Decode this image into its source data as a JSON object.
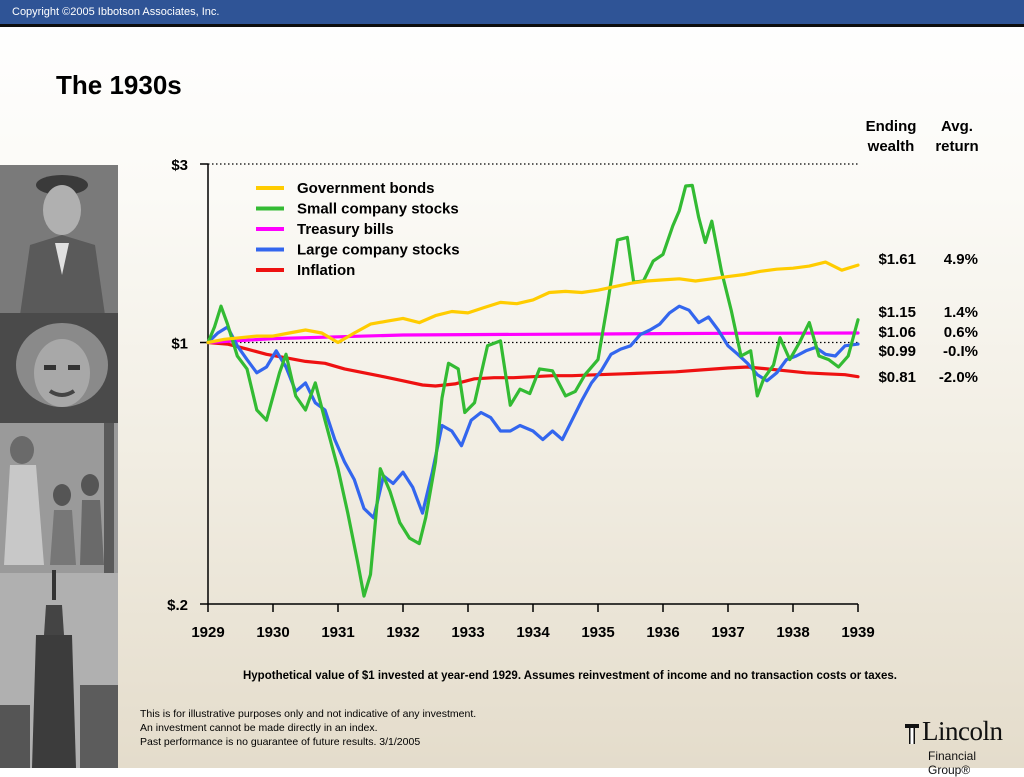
{
  "header": {
    "copyright": "Copyright ©2005 Ibbotson Associates, Inc."
  },
  "page": {
    "title": "The 1930s"
  },
  "table_headers": {
    "ending_wealth": [
      "Ending",
      "wealth"
    ],
    "avg_return": [
      "Avg.",
      "return"
    ]
  },
  "chart_data": {
    "type": "line",
    "title": "The 1930s",
    "y_scale": "log",
    "ylim": [
      0.2,
      3
    ],
    "y_ticks": [
      "$3",
      "$1",
      "$.2"
    ],
    "x_ticks": [
      "1929",
      "1930",
      "1931",
      "1932",
      "1933",
      "1934",
      "1935",
      "1936",
      "1937",
      "1938",
      "1939"
    ],
    "xlim": [
      1929,
      1939
    ],
    "grid": "dotted reference lines at $3 and $1",
    "legend_position": "top-left",
    "series": [
      {
        "name": "Government bonds",
        "color": "#ffcc00",
        "ending_wealth": "$1.61",
        "avg_return": "4.9%",
        "points": [
          [
            1929,
            1.0
          ],
          [
            1929.25,
            1.02
          ],
          [
            1929.5,
            1.03
          ],
          [
            1929.75,
            1.04
          ],
          [
            1930,
            1.04
          ],
          [
            1930.25,
            1.06
          ],
          [
            1930.5,
            1.08
          ],
          [
            1930.75,
            1.06
          ],
          [
            1931,
            1.0
          ],
          [
            1931.25,
            1.06
          ],
          [
            1931.5,
            1.12
          ],
          [
            1931.75,
            1.14
          ],
          [
            1932,
            1.16
          ],
          [
            1932.25,
            1.13
          ],
          [
            1932.5,
            1.18
          ],
          [
            1932.75,
            1.21
          ],
          [
            1933,
            1.2
          ],
          [
            1933.25,
            1.24
          ],
          [
            1933.5,
            1.28
          ],
          [
            1933.75,
            1.27
          ],
          [
            1934,
            1.3
          ],
          [
            1934.25,
            1.36
          ],
          [
            1934.5,
            1.37
          ],
          [
            1934.75,
            1.36
          ],
          [
            1935,
            1.38
          ],
          [
            1935.25,
            1.41
          ],
          [
            1935.5,
            1.44
          ],
          [
            1935.75,
            1.46
          ],
          [
            1936,
            1.47
          ],
          [
            1936.25,
            1.48
          ],
          [
            1936.5,
            1.46
          ],
          [
            1936.75,
            1.48
          ],
          [
            1937,
            1.5
          ],
          [
            1937.25,
            1.52
          ],
          [
            1937.5,
            1.55
          ],
          [
            1937.75,
            1.57
          ],
          [
            1938,
            1.58
          ],
          [
            1938.25,
            1.6
          ],
          [
            1938.5,
            1.64
          ],
          [
            1938.75,
            1.56
          ],
          [
            1939,
            1.61
          ]
        ]
      },
      {
        "name": "Small company stocks",
        "color": "#33bb33",
        "ending_wealth": "$1.15",
        "avg_return": "1.4%",
        "points": [
          [
            1929,
            1.0
          ],
          [
            1929.1,
            1.1
          ],
          [
            1929.2,
            1.25
          ],
          [
            1929.3,
            1.12
          ],
          [
            1929.45,
            0.92
          ],
          [
            1929.6,
            0.85
          ],
          [
            1929.75,
            0.66
          ],
          [
            1929.9,
            0.62
          ],
          [
            1930.1,
            0.83
          ],
          [
            1930.2,
            0.93
          ],
          [
            1930.35,
            0.72
          ],
          [
            1930.5,
            0.66
          ],
          [
            1930.65,
            0.78
          ],
          [
            1930.8,
            0.62
          ],
          [
            1931.0,
            0.46
          ],
          [
            1931.15,
            0.35
          ],
          [
            1931.3,
            0.26
          ],
          [
            1931.4,
            0.21
          ],
          [
            1931.5,
            0.24
          ],
          [
            1931.65,
            0.46
          ],
          [
            1931.8,
            0.4
          ],
          [
            1931.95,
            0.33
          ],
          [
            1932.1,
            0.3
          ],
          [
            1932.25,
            0.29
          ],
          [
            1932.35,
            0.34
          ],
          [
            1932.5,
            0.48
          ],
          [
            1932.6,
            0.71
          ],
          [
            1932.7,
            0.88
          ],
          [
            1932.85,
            0.85
          ],
          [
            1932.95,
            0.65
          ],
          [
            1933.1,
            0.69
          ],
          [
            1933.3,
            0.98
          ],
          [
            1933.5,
            1.01
          ],
          [
            1933.65,
            0.68
          ],
          [
            1933.8,
            0.75
          ],
          [
            1933.95,
            0.73
          ],
          [
            1934.1,
            0.85
          ],
          [
            1934.3,
            0.84
          ],
          [
            1934.5,
            0.72
          ],
          [
            1934.65,
            0.74
          ],
          [
            1934.8,
            0.82
          ],
          [
            1935.0,
            0.9
          ],
          [
            1935.15,
            1.28
          ],
          [
            1935.3,
            1.88
          ],
          [
            1935.45,
            1.91
          ],
          [
            1935.55,
            1.45
          ],
          [
            1935.7,
            1.46
          ],
          [
            1935.85,
            1.65
          ],
          [
            1936.0,
            1.72
          ],
          [
            1936.15,
            2.05
          ],
          [
            1936.25,
            2.25
          ],
          [
            1936.35,
            2.62
          ],
          [
            1936.45,
            2.63
          ],
          [
            1936.55,
            2.16
          ],
          [
            1936.65,
            1.85
          ],
          [
            1936.75,
            2.11
          ],
          [
            1936.9,
            1.55
          ],
          [
            1937.05,
            1.22
          ],
          [
            1937.2,
            0.92
          ],
          [
            1937.35,
            0.95
          ],
          [
            1937.45,
            0.72
          ],
          [
            1937.55,
            0.8
          ],
          [
            1937.7,
            0.87
          ],
          [
            1937.8,
            1.03
          ],
          [
            1937.95,
            0.9
          ],
          [
            1938.1,
            1.0
          ],
          [
            1938.25,
            1.13
          ],
          [
            1938.4,
            0.92
          ],
          [
            1938.55,
            0.9
          ],
          [
            1938.7,
            0.86
          ],
          [
            1938.85,
            0.92
          ],
          [
            1939,
            1.15
          ]
        ]
      },
      {
        "name": "Treasury bills",
        "color": "#ff00ff",
        "ending_wealth": "$1.06",
        "avg_return": "0.6%",
        "points": [
          [
            1929,
            1.0
          ],
          [
            1930,
            1.024
          ],
          [
            1931,
            1.036
          ],
          [
            1932,
            1.047
          ],
          [
            1933,
            1.05
          ],
          [
            1934,
            1.052
          ],
          [
            1935,
            1.054
          ],
          [
            1936,
            1.056
          ],
          [
            1937,
            1.058
          ],
          [
            1938,
            1.059
          ],
          [
            1939,
            1.06
          ]
        ]
      },
      {
        "name": "Large company stocks",
        "color": "#3366ee",
        "ending_wealth": "$0.99",
        "avg_return": "-0.I%",
        "points": [
          [
            1929,
            1.0
          ],
          [
            1929.15,
            1.06
          ],
          [
            1929.3,
            1.1
          ],
          [
            1929.45,
            0.98
          ],
          [
            1929.6,
            0.9
          ],
          [
            1929.75,
            0.83
          ],
          [
            1929.9,
            0.86
          ],
          [
            1930.05,
            0.95
          ],
          [
            1930.2,
            0.86
          ],
          [
            1930.35,
            0.74
          ],
          [
            1930.5,
            0.78
          ],
          [
            1930.65,
            0.69
          ],
          [
            1930.8,
            0.66
          ],
          [
            1930.95,
            0.55
          ],
          [
            1931.1,
            0.48
          ],
          [
            1931.25,
            0.43
          ],
          [
            1931.4,
            0.36
          ],
          [
            1931.55,
            0.34
          ],
          [
            1931.7,
            0.44
          ],
          [
            1931.85,
            0.42
          ],
          [
            1932.0,
            0.45
          ],
          [
            1932.15,
            0.41
          ],
          [
            1932.3,
            0.35
          ],
          [
            1932.45,
            0.45
          ],
          [
            1932.6,
            0.6
          ],
          [
            1932.75,
            0.58
          ],
          [
            1932.9,
            0.53
          ],
          [
            1933.05,
            0.62
          ],
          [
            1933.2,
            0.65
          ],
          [
            1933.35,
            0.63
          ],
          [
            1933.5,
            0.58
          ],
          [
            1933.65,
            0.58
          ],
          [
            1933.8,
            0.6
          ],
          [
            1934.0,
            0.58
          ],
          [
            1934.15,
            0.55
          ],
          [
            1934.3,
            0.58
          ],
          [
            1934.45,
            0.55
          ],
          [
            1934.6,
            0.62
          ],
          [
            1934.75,
            0.7
          ],
          [
            1934.9,
            0.78
          ],
          [
            1935.05,
            0.84
          ],
          [
            1935.2,
            0.93
          ],
          [
            1935.35,
            0.96
          ],
          [
            1935.5,
            0.98
          ],
          [
            1935.65,
            1.05
          ],
          [
            1935.8,
            1.08
          ],
          [
            1935.95,
            1.12
          ],
          [
            1936.1,
            1.2
          ],
          [
            1936.25,
            1.25
          ],
          [
            1936.4,
            1.22
          ],
          [
            1936.55,
            1.13
          ],
          [
            1936.7,
            1.17
          ],
          [
            1936.85,
            1.08
          ],
          [
            1937.0,
            0.98
          ],
          [
            1937.15,
            0.93
          ],
          [
            1937.3,
            0.88
          ],
          [
            1937.45,
            0.82
          ],
          [
            1937.6,
            0.79
          ],
          [
            1937.75,
            0.83
          ],
          [
            1937.9,
            0.9
          ],
          [
            1938.05,
            0.92
          ],
          [
            1938.2,
            0.95
          ],
          [
            1938.35,
            0.97
          ],
          [
            1938.5,
            0.93
          ],
          [
            1938.65,
            0.92
          ],
          [
            1938.8,
            0.98
          ],
          [
            1939,
            0.99
          ]
        ]
      },
      {
        "name": "Inflation",
        "color": "#ee1111",
        "ending_wealth": "$0.81",
        "avg_return": "-2.0%",
        "points": [
          [
            1929,
            1.0
          ],
          [
            1929.3,
            0.99
          ],
          [
            1929.6,
            0.96
          ],
          [
            1929.9,
            0.93
          ],
          [
            1930.2,
            0.91
          ],
          [
            1930.5,
            0.89
          ],
          [
            1930.8,
            0.88
          ],
          [
            1931.1,
            0.85
          ],
          [
            1931.4,
            0.83
          ],
          [
            1931.7,
            0.81
          ],
          [
            1932.0,
            0.79
          ],
          [
            1932.3,
            0.77
          ],
          [
            1932.5,
            0.765
          ],
          [
            1932.8,
            0.775
          ],
          [
            1933.1,
            0.8
          ],
          [
            1933.4,
            0.805
          ],
          [
            1933.7,
            0.805
          ],
          [
            1934.0,
            0.81
          ],
          [
            1934.3,
            0.815
          ],
          [
            1934.6,
            0.815
          ],
          [
            1935.0,
            0.82
          ],
          [
            1935.4,
            0.825
          ],
          [
            1935.8,
            0.83
          ],
          [
            1936.2,
            0.835
          ],
          [
            1936.6,
            0.845
          ],
          [
            1937.0,
            0.855
          ],
          [
            1937.3,
            0.86
          ],
          [
            1937.6,
            0.85
          ],
          [
            1937.9,
            0.84
          ],
          [
            1938.2,
            0.83
          ],
          [
            1938.5,
            0.825
          ],
          [
            1938.8,
            0.82
          ],
          [
            1939,
            0.81
          ]
        ]
      }
    ]
  },
  "footnote": "Hypothetical value of $1 invested at year-end 1929. Assumes reinvestment of income and no transaction costs or taxes.",
  "disclaimer": [
    "This is for illustrative purposes only and not indicative of any investment.",
    "An investment cannot be made directly in an index.",
    "Past performance is no guarantee of future results. 3/1/2005"
  ],
  "logo": {
    "word": "Lincoln",
    "sub": "Financial Group®"
  },
  "photo_strip_icon": "historical-photo-collage"
}
